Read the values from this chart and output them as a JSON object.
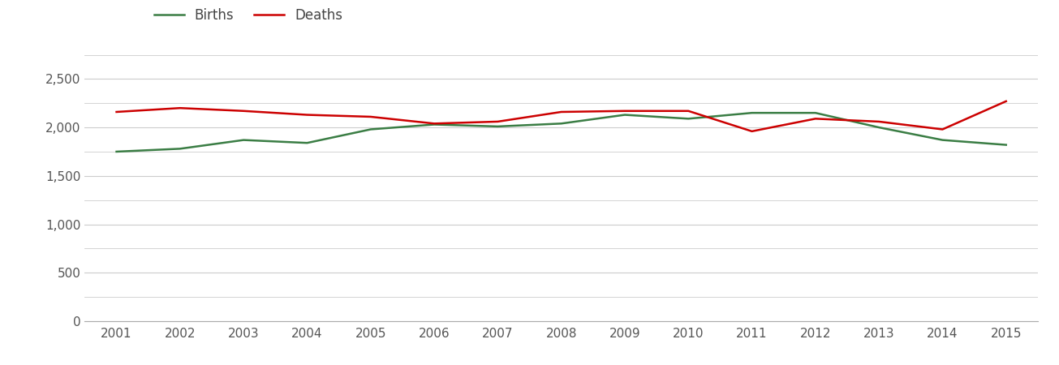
{
  "years": [
    2001,
    2002,
    2003,
    2004,
    2005,
    2006,
    2007,
    2008,
    2009,
    2010,
    2011,
    2012,
    2013,
    2014,
    2015
  ],
  "births": [
    1750,
    1780,
    1870,
    1840,
    1980,
    2030,
    2010,
    2040,
    2130,
    2090,
    2150,
    2150,
    2000,
    1870,
    1820
  ],
  "deaths": [
    2160,
    2200,
    2170,
    2130,
    2110,
    2040,
    2060,
    2160,
    2170,
    2170,
    1960,
    2090,
    2060,
    1980,
    2270
  ],
  "births_color": "#3a7d44",
  "deaths_color": "#cc0000",
  "background_color": "#ffffff",
  "grid_color": "#cccccc",
  "ylim": [
    0,
    2750
  ],
  "yticks": [
    0,
    500,
    1000,
    1500,
    2000,
    2500
  ],
  "ytick_labels": [
    "0",
    "500",
    "1,000",
    "1,500",
    "2,000",
    "2,500"
  ],
  "legend_births": "Births",
  "legend_deaths": "Deaths",
  "line_width": 1.8
}
